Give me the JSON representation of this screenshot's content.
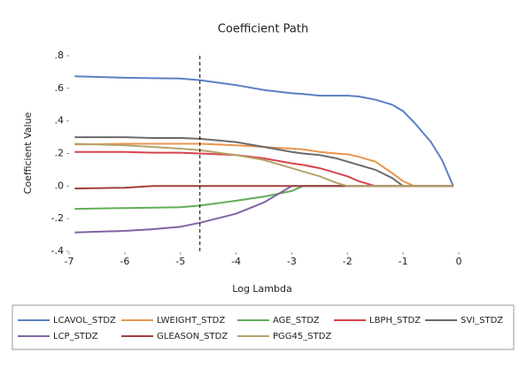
{
  "chart_data": {
    "type": "line",
    "title": "Coefficient Path",
    "x_label": "Log Lambda",
    "y_label": "Coefficient Value",
    "x": [
      -6.9,
      -6,
      -5.5,
      -5,
      -4.65,
      -4,
      -3.5,
      -3,
      -2.8,
      -2.5,
      -2.2,
      -2,
      -1.8,
      -1.5,
      -1.2,
      -1,
      -0.8,
      -0.5,
      -0.3,
      -0.1
    ],
    "series": [
      {
        "name": "LCAVOL_STDZ",
        "color": "#5b80c4",
        "values": [
          0.674,
          0.665,
          0.662,
          0.66,
          0.65,
          0.62,
          0.59,
          0.57,
          0.565,
          0.555,
          0.555,
          0.555,
          0.55,
          0.53,
          0.5,
          0.46,
          0.39,
          0.27,
          0.16,
          0
        ]
      },
      {
        "name": "LWEIGHT_STDZ",
        "color": "#e8964f",
        "values": [
          0.255,
          0.26,
          0.26,
          0.26,
          0.26,
          0.25,
          0.24,
          0.23,
          0.225,
          0.21,
          0.2,
          0.195,
          0.18,
          0.15,
          0.08,
          0.03,
          0,
          0,
          0,
          0
        ]
      },
      {
        "name": "AGE_STDZ",
        "color": "#62ad59",
        "values": [
          -0.14,
          -0.135,
          -0.133,
          -0.13,
          -0.12,
          -0.09,
          -0.065,
          -0.03,
          0,
          0,
          0,
          0,
          0,
          0,
          0,
          0,
          0,
          0,
          0,
          0
        ]
      },
      {
        "name": "LBPH_STDZ",
        "color": "#d9434a",
        "values": [
          0.21,
          0.21,
          0.205,
          0.205,
          0.2,
          0.19,
          0.17,
          0.14,
          0.13,
          0.11,
          0.08,
          0.06,
          0.03,
          0,
          0,
          0,
          0,
          0,
          0,
          0
        ]
      },
      {
        "name": "SVI_STDZ",
        "color": "#6b6b6b",
        "values": [
          0.3,
          0.3,
          0.295,
          0.295,
          0.29,
          0.27,
          0.24,
          0.21,
          0.2,
          0.19,
          0.17,
          0.15,
          0.13,
          0.1,
          0.05,
          0,
          0,
          0,
          0,
          0
        ]
      },
      {
        "name": "LCP_STDZ",
        "color": "#8064a2",
        "values": [
          -0.285,
          -0.275,
          -0.265,
          -0.25,
          -0.225,
          -0.17,
          -0.1,
          0,
          0,
          0,
          0,
          0,
          0,
          0,
          0,
          0,
          0,
          0,
          0,
          0
        ]
      },
      {
        "name": "GLEASON_STDZ",
        "color": "#a0403c",
        "values": [
          -0.015,
          -0.01,
          0,
          0,
          0,
          0,
          0,
          0,
          0,
          0,
          0,
          0,
          0,
          0,
          0,
          0,
          0,
          0,
          0,
          0
        ]
      },
      {
        "name": "PGG45_STDZ",
        "color": "#b4a46c",
        "values": [
          0.26,
          0.25,
          0.24,
          0.23,
          0.22,
          0.19,
          0.16,
          0.11,
          0.09,
          0.06,
          0.02,
          0,
          0,
          0,
          0,
          0,
          0,
          0,
          0,
          0
        ]
      }
    ],
    "reference_line": -4.65,
    "xlim": [
      -7,
      0
    ],
    "xticks": [
      -7,
      -6,
      -5,
      -4,
      -3,
      -2,
      -1,
      0
    ],
    "ylim": [
      -0.4,
      0.8
    ],
    "yticks": [
      {
        "value": -0.4,
        "label": "-.4"
      },
      {
        "value": -0.2,
        "label": "-.2"
      },
      {
        "value": 0,
        "label": ".0"
      },
      {
        "value": 0.2,
        "label": ".2"
      },
      {
        "value": 0.4,
        "label": ".4"
      },
      {
        "value": 0.6,
        "label": ".6"
      },
      {
        "value": 0.8,
        "label": ".8"
      }
    ],
    "grid": false,
    "legend": "bottom"
  }
}
